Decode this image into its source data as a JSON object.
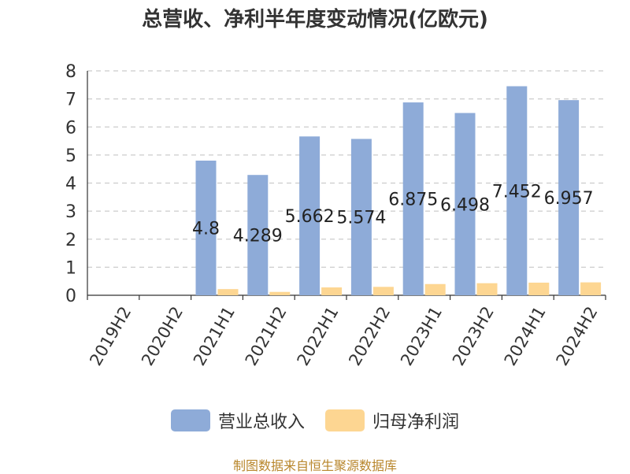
{
  "chart_data": {
    "type": "bar",
    "title": "总营收、净利半年度变动情况(亿欧元)",
    "categories": [
      "2019H2",
      "2020H2",
      "2021H1",
      "2021H2",
      "2022H1",
      "2022H2",
      "2023H1",
      "2023H2",
      "2024H1",
      "2024H2"
    ],
    "series": [
      {
        "name": "营业总收入",
        "color": "#8eabd8",
        "values": [
          0,
          0,
          4.8,
          4.289,
          5.662,
          5.574,
          6.875,
          6.498,
          7.452,
          6.957
        ],
        "labels": [
          "",
          "",
          "4.8",
          "4.289",
          "5.662",
          "5.574",
          "6.875",
          "6.498",
          "7.452",
          "6.957"
        ]
      },
      {
        "name": "归母净利润",
        "color": "#fdd692",
        "values": [
          0,
          0,
          0.22,
          0.12,
          0.28,
          0.3,
          0.4,
          0.43,
          0.45,
          0.46
        ]
      }
    ],
    "yticks": [
      "0",
      "1",
      "2",
      "3",
      "4",
      "5",
      "6",
      "7",
      "8"
    ],
    "ylim": [
      0,
      8
    ],
    "grid": true,
    "legend": "bottom-center"
  },
  "source": "制图数据来自恒生聚源数据库"
}
